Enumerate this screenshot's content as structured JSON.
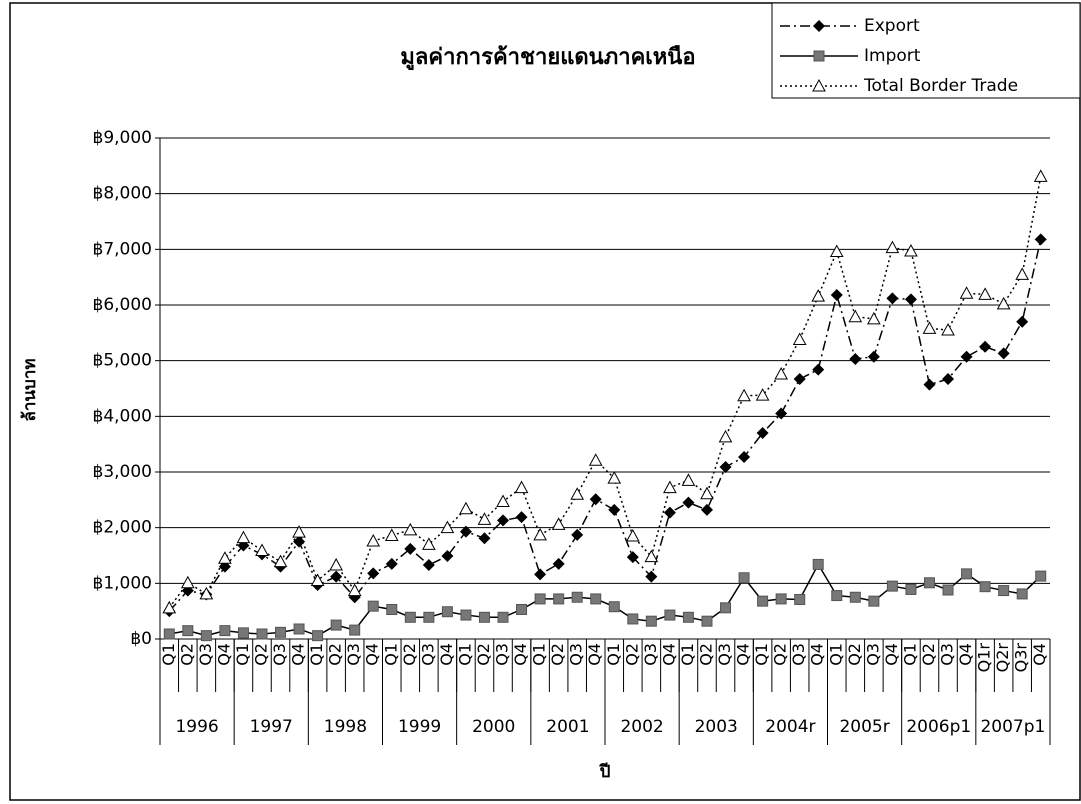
{
  "chart_data": {
    "type": "line",
    "title": "มูลค่าการค้าชายแดนภาคเหนือ",
    "y_label": "ล้านบาท",
    "x_label": "ปี",
    "categories": [
      "Q1",
      "Q2",
      "Q3",
      "Q4",
      "Q1",
      "Q2",
      "Q3",
      "Q4",
      "Q1",
      "Q2",
      "Q3",
      "Q4",
      "Q1",
      "Q2",
      "Q3",
      "Q4",
      "Q1",
      "Q2",
      "Q3",
      "Q4",
      "Q1",
      "Q2",
      "Q3",
      "Q4",
      "Q1",
      "Q2",
      "Q3",
      "Q4",
      "Q1",
      "Q2",
      "Q3",
      "Q4",
      "Q1",
      "Q2",
      "Q3",
      "Q4",
      "Q1",
      "Q2",
      "Q3",
      "Q4",
      "Q1",
      "Q2",
      "Q3",
      "Q4",
      "Q1r",
      "Q2r",
      "Q3r",
      "Q4"
    ],
    "groups": [
      "1996",
      "1997",
      "1998",
      "1999",
      "2000",
      "2001",
      "2002",
      "2003",
      "2004r",
      "2005r",
      "2006p1",
      "2007p1"
    ],
    "series": [
      {
        "name": "Export",
        "color": "#000000",
        "marker": "diamond",
        "dash": "dashdot",
        "values": [
          500,
          870,
          800,
          1300,
          1680,
          1520,
          1300,
          1750,
          970,
          1120,
          750,
          1180,
          1350,
          1620,
          1330,
          1490,
          1930,
          1810,
          2130,
          2190,
          1160,
          1350,
          1870,
          2510,
          2320,
          1470,
          1120,
          2270,
          2450,
          2320,
          3090,
          3270,
          3700,
          4050,
          4670,
          4840,
          6180,
          5030,
          5070,
          6120,
          6100,
          4570,
          4670,
          5070,
          5250,
          5130,
          5700,
          7180
        ]
      },
      {
        "name": "Import",
        "color": "#000000",
        "marker": "square",
        "dash": "solid",
        "values": [
          90,
          150,
          60,
          150,
          110,
          90,
          120,
          180,
          60,
          250,
          160,
          590,
          530,
          390,
          390,
          490,
          430,
          390,
          390,
          530,
          720,
          720,
          750,
          720,
          580,
          360,
          320,
          430,
          390,
          320,
          560,
          1100,
          680,
          720,
          710,
          1340,
          780,
          750,
          680,
          950,
          890,
          1010,
          880,
          1170,
          940,
          870,
          810,
          1130
        ]
      },
      {
        "name": "Total Border Trade",
        "color": "#000000",
        "marker": "triangle",
        "dash": "dotted",
        "values": [
          560,
          1010,
          810,
          1450,
          1820,
          1590,
          1390,
          1920,
          1050,
          1330,
          870,
          1760,
          1860,
          1960,
          1700,
          2000,
          2340,
          2150,
          2470,
          2720,
          1870,
          2060,
          2600,
          3210,
          2890,
          1850,
          1480,
          2720,
          2850,
          2610,
          3630,
          4370,
          4380,
          4760,
          5380,
          6160,
          6960,
          5790,
          5750,
          7030,
          6970,
          5580,
          5550,
          6210,
          6190,
          6020,
          6550,
          8310
        ]
      }
    ],
    "ylim": [
      0,
      9000
    ],
    "yticks": [
      {
        "value": 0,
        "label": "฿0"
      },
      {
        "value": 1000,
        "label": "฿1,000"
      },
      {
        "value": 2000,
        "label": "฿2,000"
      },
      {
        "value": 3000,
        "label": "฿3,000"
      },
      {
        "value": 4000,
        "label": "฿4,000"
      },
      {
        "value": 5000,
        "label": "฿5,000"
      },
      {
        "value": 6000,
        "label": "฿6,000"
      },
      {
        "value": 7000,
        "label": "฿7,000"
      },
      {
        "value": 8000,
        "label": "฿8,000"
      },
      {
        "value": 9000,
        "label": "฿9,000"
      }
    ],
    "grid": true,
    "legend": "top-right"
  }
}
